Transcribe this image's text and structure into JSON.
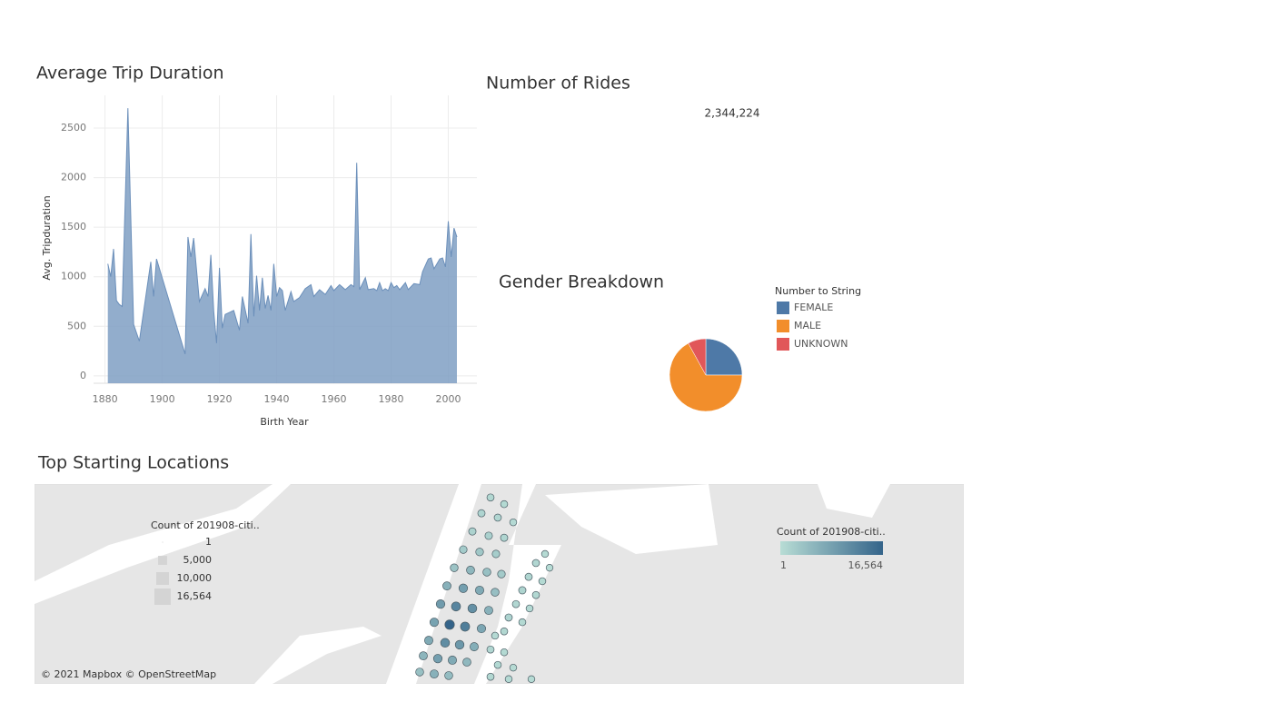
{
  "chart_data": [
    {
      "type": "area",
      "title": "Average Trip Duration",
      "x_label": "Birth Year",
      "y_label": "Avg. Tripduration",
      "color": "#7f9fc3",
      "x": [
        1881,
        1882,
        1883,
        1884,
        1885,
        1886,
        1888,
        1890,
        1892,
        1896,
        1897,
        1898,
        1908,
        1909,
        1910,
        1911,
        1913,
        1915,
        1916,
        1917,
        1918,
        1919,
        1920,
        1921,
        1922,
        1925,
        1927,
        1928,
        1930,
        1931,
        1932,
        1933,
        1934,
        1935,
        1936,
        1937,
        1938,
        1939,
        1940,
        1941,
        1942,
        1943,
        1945,
        1946,
        1948,
        1950,
        1952,
        1953,
        1955,
        1957,
        1959,
        1960,
        1962,
        1964,
        1966,
        1967,
        1968,
        1969,
        1971,
        1972,
        1974,
        1975,
        1976,
        1977,
        1978,
        1979,
        1980,
        1981,
        1982,
        1983,
        1985,
        1986,
        1988,
        1990,
        1991,
        1993,
        1994,
        1995,
        1997,
        1998,
        1999,
        2000,
        2001,
        2002,
        2003
      ],
      "values": [
        1130,
        1000,
        1280,
        760,
        720,
        700,
        2700,
        520,
        350,
        1150,
        800,
        1180,
        220,
        1400,
        1200,
        1390,
        750,
        880,
        800,
        1220,
        650,
        330,
        1090,
        480,
        620,
        660,
        460,
        800,
        530,
        1430,
        600,
        1010,
        660,
        990,
        680,
        810,
        660,
        1130,
        800,
        890,
        860,
        660,
        850,
        750,
        790,
        880,
        920,
        800,
        870,
        820,
        910,
        860,
        920,
        870,
        920,
        900,
        2150,
        870,
        990,
        870,
        880,
        860,
        940,
        860,
        880,
        860,
        940,
        890,
        910,
        870,
        940,
        870,
        930,
        920,
        1050,
        1180,
        1190,
        1080,
        1180,
        1190,
        1100,
        1560,
        1200,
        1490,
        1400
      ],
      "xlim": [
        1876,
        2010
      ],
      "xticks": [
        1880,
        1900,
        1920,
        1940,
        1960,
        1980,
        2000
      ],
      "ylim": [
        -75,
        2830
      ],
      "yticks": [
        0,
        500,
        1000,
        1500,
        2000,
        2500
      ],
      "grid": true
    },
    {
      "type": "text",
      "title": "Number of Rides",
      "values": [
        2344224
      ],
      "value_labels": [
        "2,344,224"
      ]
    },
    {
      "type": "pie",
      "title": "Gender Breakdown",
      "legend_title": "Number to String",
      "categories": [
        "FEMALE",
        "MALE",
        "UNKNOWN"
      ],
      "values": [
        25,
        67,
        8
      ],
      "colors": [
        "#4e79a7",
        "#f28e2b",
        "#e15759"
      ]
    },
    {
      "type": "map",
      "title": "Top Starting Locations",
      "attribution": "© 2021 Mapbox © OpenStreetMap",
      "xlim": [
        -74.1,
        -73.7931
      ],
      "ylim": [
        40.715,
        40.7656
      ],
      "x": [
        -73.9494,
        -73.9449,
        -73.9524,
        -73.947,
        -73.9419,
        -73.9554,
        -73.95,
        -73.9449,
        -73.9584,
        -73.953,
        -73.9476,
        -73.9614,
        -73.956,
        -73.9506,
        -73.9458,
        -73.9638,
        -73.9584,
        -73.953,
        -73.9479,
        -73.9659,
        -73.9608,
        -73.9554,
        -73.95,
        -73.968,
        -73.9629,
        -73.9578,
        -73.9524,
        -73.9698,
        -73.9644,
        -73.9596,
        -73.9548,
        -73.9716,
        -73.9668,
        -73.962,
        -73.9572,
        -73.9728,
        -73.968,
        -73.9632,
        -73.9314,
        -73.9344,
        -73.9299,
        -73.9368,
        -73.9323,
        -73.9389,
        -73.9344,
        -73.941,
        -73.9365,
        -73.9434,
        -73.9389,
        -73.9449,
        -73.9479,
        -73.9494,
        -73.9449,
        -73.947,
        -73.9419,
        -73.9494,
        -73.9434,
        -73.9359
      ],
      "y": [
        40.7622,
        40.7605,
        40.7582,
        40.7571,
        40.7559,
        40.7536,
        40.7525,
        40.752,
        40.749,
        40.7484,
        40.7479,
        40.7444,
        40.7438,
        40.7433,
        40.7428,
        40.7398,
        40.7392,
        40.7387,
        40.7382,
        40.7352,
        40.7346,
        40.7341,
        40.7336,
        40.7306,
        40.73,
        40.7295,
        40.729,
        40.726,
        40.7254,
        40.7249,
        40.7244,
        40.7221,
        40.7214,
        40.721,
        40.7205,
        40.718,
        40.7175,
        40.7171,
        40.7479,
        40.7456,
        40.7444,
        40.7421,
        40.741,
        40.7387,
        40.7375,
        40.7352,
        40.7341,
        40.7318,
        40.7306,
        40.7283,
        40.7272,
        40.7237,
        40.723,
        40.7198,
        40.7191,
        40.7168,
        40.7162,
        40.7162
      ],
      "values": [
        800,
        600,
        1200,
        900,
        500,
        1500,
        1800,
        1100,
        2500,
        3000,
        2200,
        3500,
        5200,
        4000,
        2600,
        6000,
        8500,
        7000,
        4200,
        9000,
        12000,
        10500,
        6000,
        8000,
        16564,
        13000,
        7500,
        7000,
        11000,
        9500,
        6500,
        5500,
        8500,
        7000,
        5000,
        4000,
        6000,
        4500,
        400,
        900,
        300,
        1100,
        600,
        1300,
        700,
        900,
        500,
        1200,
        600,
        800,
        500,
        900,
        600,
        700,
        400,
        800,
        500,
        300
      ],
      "size_legend_title": "Count of 201908-citi..",
      "size_legend": [
        1,
        {
          "value": 5000,
          "label": "5,000"
        },
        {
          "value": 10000,
          "label": "10,000"
        },
        {
          "value": 16564,
          "label": "16,564"
        }
      ],
      "color_legend_title": "Count of 201908-citi..",
      "color_legend": [
        1,
        {
          "value": 16564,
          "label": "16,564"
        }
      ],
      "colors": [
        "#b8ddd5",
        "#34648a"
      ]
    }
  ]
}
